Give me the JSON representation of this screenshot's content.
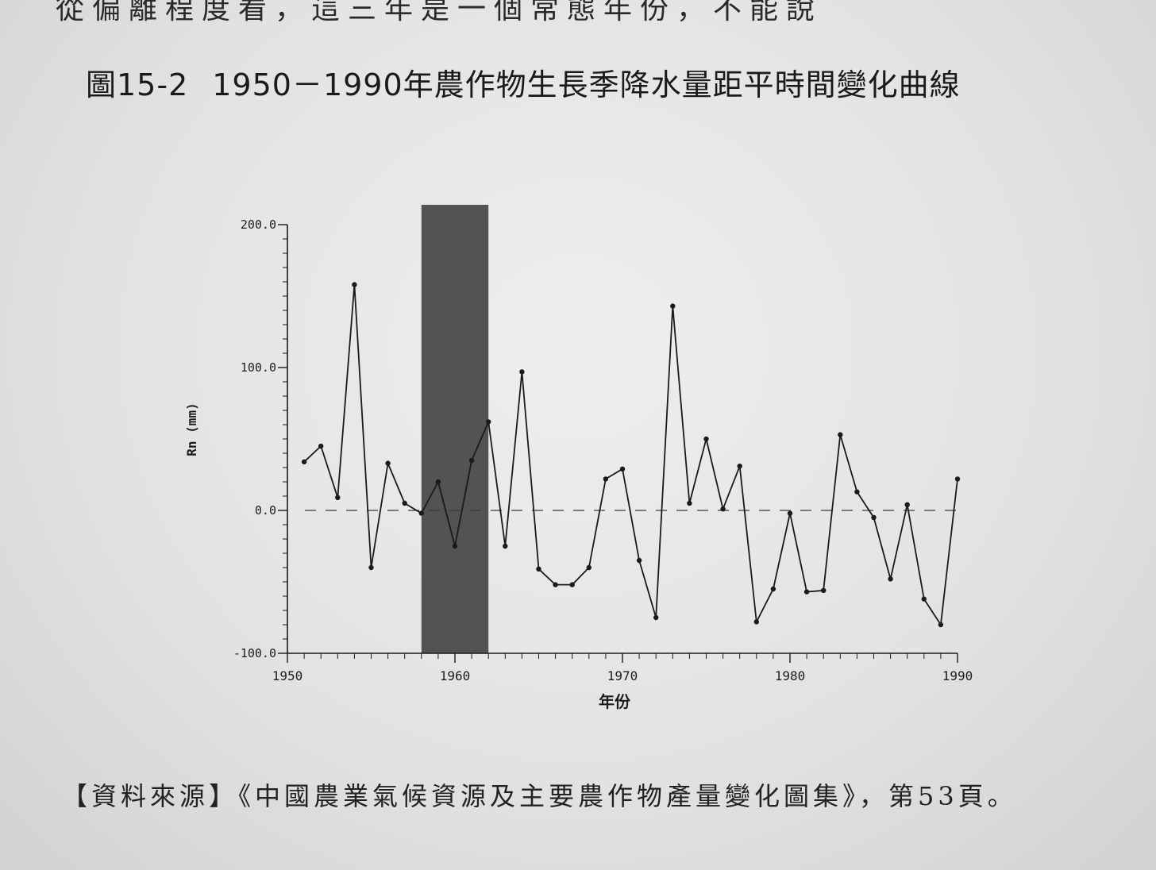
{
  "page": {
    "top_text": "從偏離程度看，這三年是一個常態年份，不能說",
    "figure_title_num": "圖15-2",
    "figure_title_text": "1950－1990年農作物生長季降水量距平時間變化曲線",
    "source_text": "【資料來源】《中國農業氣候資源及主要農作物產量變化圖集》，第53頁。"
  },
  "chart_data": {
    "type": "line",
    "title": "圖15-2　1950－1990年農作物生長季降水量距平時間變化曲線",
    "xlabel": "年份",
    "ylabel": "Rn (mm)",
    "xlim": [
      1950,
      1990
    ],
    "ylim": [
      -100,
      200
    ],
    "x_ticks": [
      "1950",
      "1960",
      "1970",
      "1980",
      "1990"
    ],
    "y_ticks": [
      "200.0",
      "100.0",
      "0.0",
      "-100.0"
    ],
    "y_tick_values": [
      200,
      100,
      0,
      -100
    ],
    "x_tick_values": [
      1950,
      1960,
      1970,
      1980,
      1990
    ],
    "shaded_range": [
      1958,
      1962
    ],
    "baseline": 0,
    "series": [
      {
        "x": [
          1951,
          1952,
          1953,
          1954,
          1955,
          1956,
          1957,
          1958,
          1959,
          1960,
          1961,
          1962,
          1963,
          1964,
          1965,
          1966,
          1967,
          1968,
          1969,
          1970,
          1971,
          1972,
          1973,
          1974,
          1975,
          1976,
          1977,
          1978,
          1979,
          1980,
          1981,
          1982,
          1983,
          1984,
          1985,
          1986,
          1987,
          1988,
          1989,
          1990
        ],
        "values": [
          34,
          45,
          9,
          158,
          -40,
          33,
          5,
          -2,
          20,
          -25,
          35,
          62,
          -25,
          97,
          -41,
          -52,
          -52,
          -40,
          22,
          29,
          -35,
          -75,
          143,
          5,
          50,
          1,
          31,
          -78,
          -55,
          -2,
          -57,
          -56,
          53,
          13,
          -5,
          -48,
          4,
          -62,
          -80,
          22
        ]
      }
    ],
    "colors": {
      "line": "#1a1a1a",
      "shade": "#454545",
      "baseline": "#3a3a3a"
    }
  }
}
